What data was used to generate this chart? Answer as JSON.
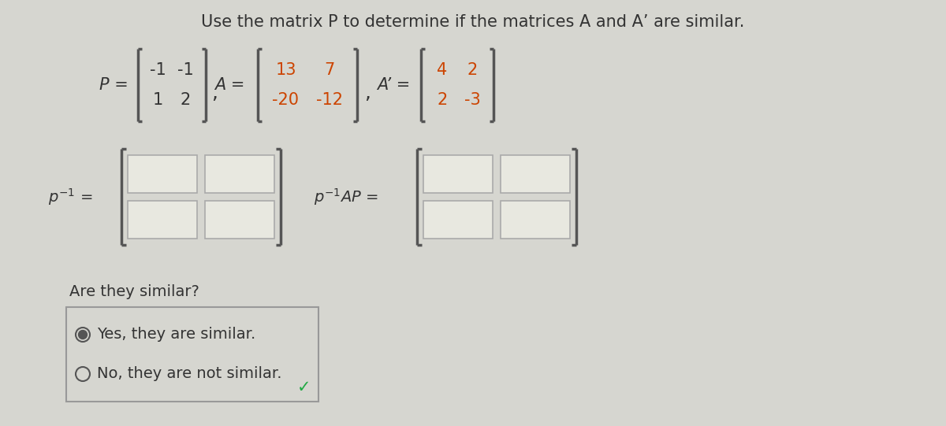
{
  "title": "Use the matrix P to determine if the matrices A and A’ are similar.",
  "bg_color": "#d6d6d0",
  "P_matrix": [
    [
      "-1",
      "-1"
    ],
    [
      "1",
      "2"
    ]
  ],
  "A_matrix": [
    [
      "13",
      "7"
    ],
    [
      "-20",
      "-12"
    ]
  ],
  "Ap_matrix": [
    [
      "4",
      "2"
    ],
    [
      "2",
      "-3"
    ]
  ],
  "A_matrix_color": "#cc4400",
  "Ap_matrix_color": "#cc4400",
  "are_they_similar": "Are they similar?",
  "yes_text": "Yes, they are similar.",
  "no_text": "No, they are not similar.",
  "A_prime_label_color": "#333333",
  "text_color": "#333333",
  "bracket_color": "#555555",
  "font_size_title": 15,
  "font_size_matrix": 15,
  "font_size_labels": 14,
  "input_box_color": "#e8e8e0",
  "input_box_border": "#aaaaaa"
}
